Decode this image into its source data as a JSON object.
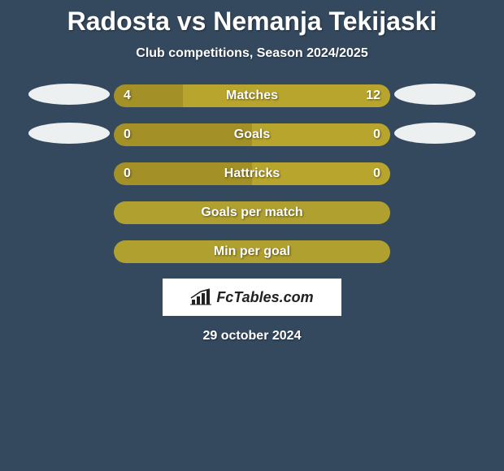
{
  "title": "Radosta vs Nemanja Tekijaski",
  "subtitle": "Club competitions, Season 2024/2025",
  "colors": {
    "background": "#34495e",
    "bar_left": "#a39026",
    "bar_right": "#b8a52d",
    "bar_full": "#b0a030",
    "badge": "#ecf0f1",
    "text": "#ffffff"
  },
  "rows": [
    {
      "label": "Matches",
      "left_value": "4",
      "right_value": "12",
      "left_pct": 25,
      "right_pct": 75,
      "show_badges": true,
      "show_values": true
    },
    {
      "label": "Goals",
      "left_value": "0",
      "right_value": "0",
      "left_pct": 50,
      "right_pct": 50,
      "show_badges": true,
      "show_values": true
    },
    {
      "label": "Hattricks",
      "left_value": "0",
      "right_value": "0",
      "left_pct": 50,
      "right_pct": 50,
      "show_badges": false,
      "show_values": true
    },
    {
      "label": "Goals per match",
      "left_value": "",
      "right_value": "",
      "left_pct": 100,
      "right_pct": 0,
      "show_badges": false,
      "show_values": false
    },
    {
      "label": "Min per goal",
      "left_value": "",
      "right_value": "",
      "left_pct": 100,
      "right_pct": 0,
      "show_badges": false,
      "show_values": false
    }
  ],
  "site": {
    "name": "FcTables.com"
  },
  "date": "29 october 2024",
  "typography": {
    "title_fontsize": 32,
    "subtitle_fontsize": 16,
    "label_fontsize": 16,
    "value_fontsize": 16,
    "date_fontsize": 16
  }
}
